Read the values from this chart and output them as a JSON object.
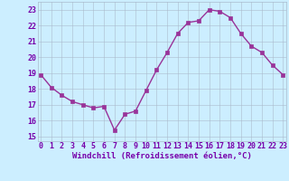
{
  "x": [
    0,
    1,
    2,
    3,
    4,
    5,
    6,
    7,
    8,
    9,
    10,
    11,
    12,
    13,
    14,
    15,
    16,
    17,
    18,
    19,
    20,
    21,
    22,
    23
  ],
  "y": [
    18.9,
    18.1,
    17.6,
    17.2,
    17.0,
    16.8,
    16.9,
    15.4,
    16.4,
    16.6,
    17.9,
    19.2,
    20.3,
    21.5,
    22.2,
    22.3,
    23.0,
    22.9,
    22.5,
    21.5,
    20.7,
    20.3,
    19.5,
    18.9
  ],
  "line_color": "#993399",
  "marker": "s",
  "markersize": 2.5,
  "linewidth": 1.0,
  "background_color": "#cceeff",
  "plot_bg_color": "#cceeff",
  "grid_color": "#aabbcc",
  "xlabel": "Windchill (Refroidissement éolien,°C)",
  "xlabel_fontsize": 6.5,
  "ytick_labels": [
    "15",
    "16",
    "17",
    "18",
    "19",
    "20",
    "21",
    "22",
    "23"
  ],
  "ytick_vals": [
    15,
    16,
    17,
    18,
    19,
    20,
    21,
    22,
    23
  ],
  "xtick_labels": [
    "0",
    "1",
    "2",
    "3",
    "4",
    "5",
    "6",
    "7",
    "8",
    "9",
    "10",
    "11",
    "12",
    "13",
    "14",
    "15",
    "16",
    "17",
    "18",
    "19",
    "20",
    "21",
    "22",
    "23"
  ],
  "xlim": [
    -0.3,
    23.3
  ],
  "ylim": [
    14.7,
    23.5
  ],
  "tick_fontsize": 6.0,
  "tick_color": "#7700aa",
  "label_color": "#7700aa"
}
